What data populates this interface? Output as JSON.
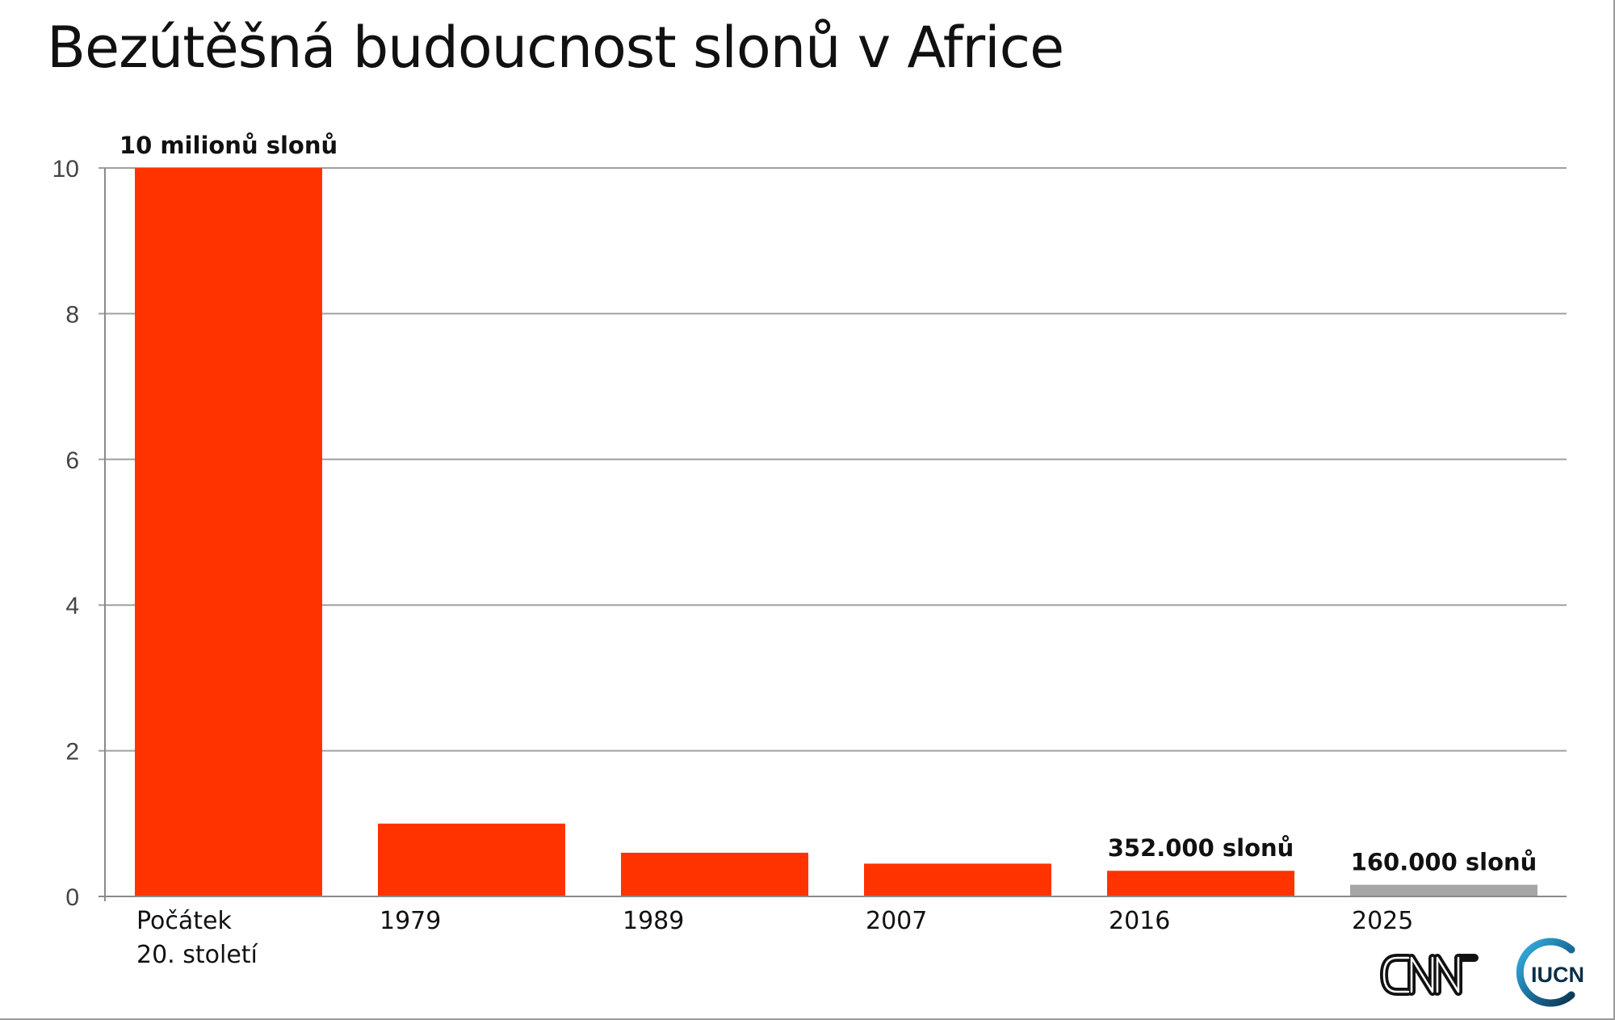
{
  "chart_data": {
    "type": "bar",
    "title": "Bezútěšná budoucnost slonů v Africe",
    "categories": [
      "Počátek\n20. století",
      "1979",
      "1989",
      "2007",
      "2016",
      "2025"
    ],
    "values": [
      10,
      1.0,
      0.6,
      0.45,
      0.352,
      0.16
    ],
    "ylim": [
      0,
      10
    ],
    "yticks": [
      0,
      2,
      4,
      6,
      8,
      10
    ],
    "grid": true,
    "data_labels": [
      "10 milionů slonů",
      "",
      "",
      "",
      "352.000 slonů",
      "160.000 slonů"
    ],
    "colors": [
      "#ff3300",
      "#ff3300",
      "#ff3300",
      "#ff3300",
      "#ff3300",
      "#a6a6a6"
    ],
    "gridline_color": "#a0a0a0"
  },
  "logos": [
    "cnn-logo",
    "iucn-logo"
  ]
}
